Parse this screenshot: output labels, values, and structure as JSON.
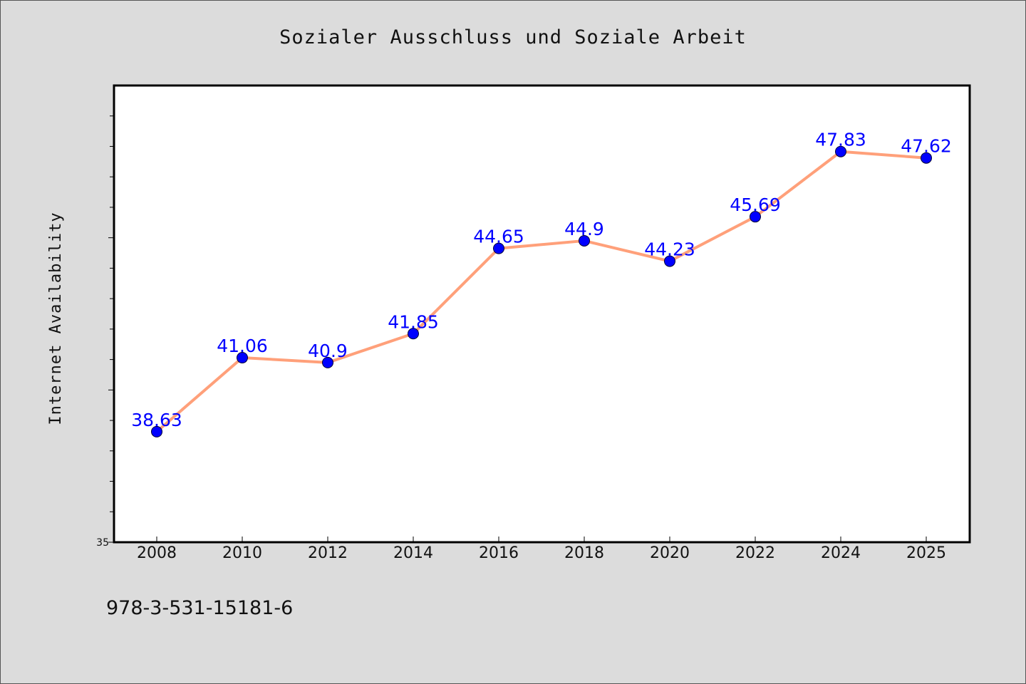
{
  "chart_data": {
    "type": "line",
    "title": "Sozialer Ausschluss und Soziale Arbeit",
    "xlabel": "",
    "ylabel": "Internet Availability",
    "categories": [
      "2008",
      "2010",
      "2012",
      "2014",
      "2016",
      "2018",
      "2020",
      "2022",
      "2024",
      "2025"
    ],
    "values": [
      38.63,
      41.06,
      40.9,
      41.85,
      44.65,
      44.9,
      44.23,
      45.69,
      47.83,
      47.62
    ],
    "data_labels": [
      "38.63",
      "41.06",
      "40.9",
      "41.85",
      "44.65",
      "44.9",
      "44.23",
      "45.69",
      "47.83",
      "47.62"
    ],
    "ylim": [
      35,
      50
    ],
    "y_tick_labels": [
      "35"
    ],
    "grid": false,
    "legend": "none",
    "colors": {
      "background": "#dcdcdc",
      "plot_background": "#ffffff",
      "line": "#ffa07a",
      "marker": "#0000ff",
      "data_label": "#0000ff"
    }
  },
  "footer": {
    "code": "978-3-531-15181-6"
  }
}
